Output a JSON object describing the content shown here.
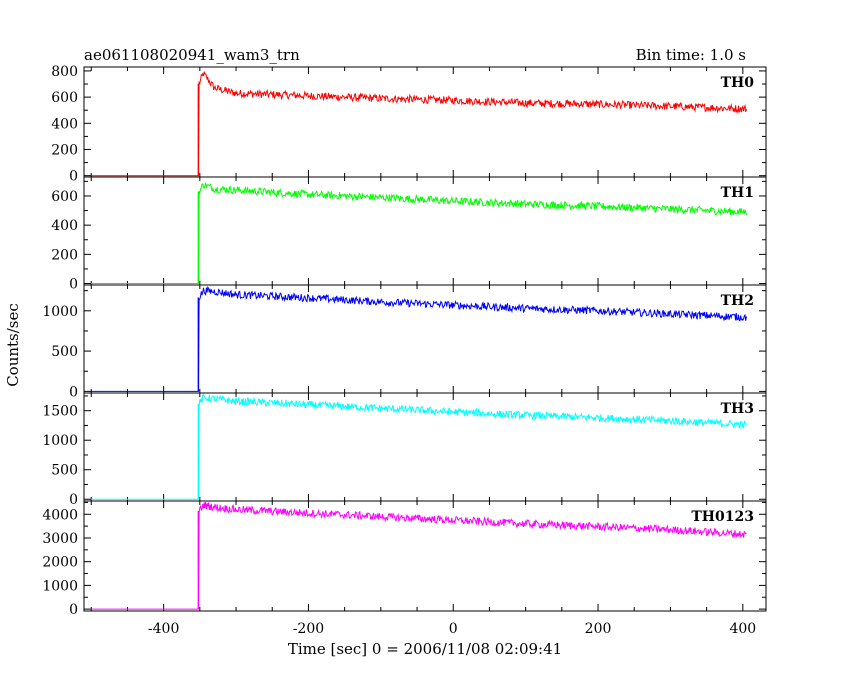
{
  "header": {
    "left": "ae061108020941_wam3_trn",
    "right": "Bin time: 1.0 s"
  },
  "chart_data": {
    "type": "line",
    "xlabel": "Time [sec] 0 = 2006/11/08 02:09:41",
    "ylabel": "Counts/sec",
    "xlim": [
      -510,
      432
    ],
    "xticks": [
      -400,
      -200,
      0,
      200,
      400
    ],
    "xtick_labels": [
      "-400",
      "-200",
      "0",
      "200",
      "400"
    ],
    "panels": [
      {
        "name": "TH0",
        "color": "#ff0000",
        "ylim": [
          -10,
          830
        ],
        "yticks": [
          0,
          200,
          400,
          600,
          800
        ],
        "ytick_labels": [
          "0",
          "200",
          "400",
          "600",
          "800"
        ],
        "series": {
          "x": [
            -500,
            -352,
            -352,
            -345,
            -330,
            -300,
            -200,
            -100,
            0,
            100,
            200,
            300,
            405
          ],
          "y": [
            0,
            0,
            690,
            780,
            670,
            630,
            610,
            590,
            575,
            555,
            545,
            530,
            510
          ]
        }
      },
      {
        "name": "TH1",
        "color": "#00ff00",
        "ylim": [
          -10,
          730
        ],
        "yticks": [
          0,
          200,
          400,
          600
        ],
        "ytick_labels": [
          "0",
          "200",
          "400",
          "600"
        ],
        "series": {
          "x": [
            -500,
            -352,
            -352,
            -345,
            -330,
            -300,
            -200,
            -100,
            0,
            100,
            200,
            300,
            405
          ],
          "y": [
            0,
            0,
            620,
            680,
            650,
            640,
            610,
            590,
            565,
            545,
            530,
            510,
            490
          ]
        }
      },
      {
        "name": "TH2",
        "color": "#0000ff",
        "ylim": [
          -20,
          1320
        ],
        "yticks": [
          0,
          500,
          1000
        ],
        "ytick_labels": [
          "0",
          "500",
          "1000"
        ],
        "series": {
          "x": [
            -500,
            -352,
            -352,
            -345,
            -330,
            -300,
            -200,
            -100,
            0,
            100,
            200,
            300,
            405
          ],
          "y": [
            0,
            0,
            1150,
            1250,
            1240,
            1200,
            1160,
            1110,
            1070,
            1030,
            1000,
            960,
            920
          ]
        }
      },
      {
        "name": "TH3",
        "color": "#00ffff",
        "ylim": [
          -30,
          1800
        ],
        "yticks": [
          0,
          500,
          1000,
          1500
        ],
        "ytick_labels": [
          "0",
          "500",
          "1000",
          "1500"
        ],
        "series": {
          "x": [
            -500,
            -352,
            -352,
            -345,
            -330,
            -300,
            -200,
            -100,
            0,
            100,
            200,
            300,
            405
          ],
          "y": [
            0,
            0,
            1600,
            1720,
            1700,
            1660,
            1600,
            1540,
            1480,
            1420,
            1380,
            1330,
            1260
          ]
        }
      },
      {
        "name": "TH0123",
        "color": "#ff00ff",
        "ylim": [
          -80,
          4560
        ],
        "yticks": [
          0,
          1000,
          2000,
          3000,
          4000
        ],
        "ytick_labels": [
          "0",
          "1000",
          "2000",
          "3000",
          "4000"
        ],
        "series": {
          "x": [
            -500,
            -352,
            -352,
            -345,
            -330,
            -300,
            -200,
            -100,
            0,
            100,
            200,
            300,
            405
          ],
          "y": [
            0,
            0,
            4100,
            4400,
            4300,
            4200,
            4050,
            3900,
            3750,
            3600,
            3480,
            3350,
            3150
          ]
        }
      }
    ]
  }
}
